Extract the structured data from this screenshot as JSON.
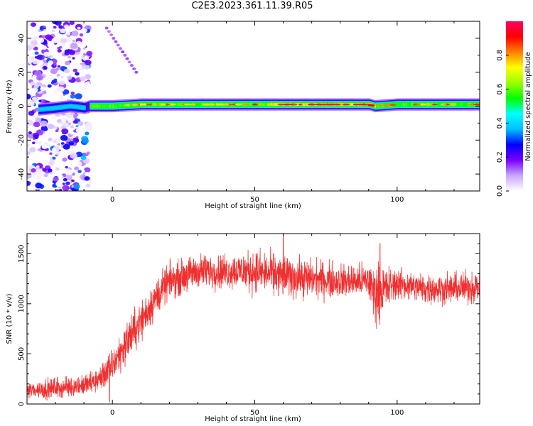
{
  "page": {
    "title": "C2E3.2023.361.11.39.R05"
  },
  "chart_data": [
    {
      "type": "heatmap",
      "title": "",
      "xlabel": "Height of straight line (km)",
      "ylabel": "Frequency (Hz)",
      "xlim": [
        -30,
        129
      ],
      "ylim": [
        -50,
        50
      ],
      "xticks": [
        0,
        50,
        100
      ],
      "yticks": [
        -40,
        -20,
        0,
        20,
        40
      ],
      "colorbar": {
        "label": "Normalized spectral amplitude",
        "range": [
          0.0,
          1.0
        ],
        "ticks": [
          0.0,
          0.2,
          0.4,
          0.6,
          0.8
        ],
        "tick_labels": [
          "0.0",
          "0.2",
          "0.4",
          "0.6",
          "0.8"
        ],
        "colormap": [
          "#ffffff",
          "#c9a7ff",
          "#7a00ff",
          "#0000ff",
          "#00bfff",
          "#00ffff",
          "#00ff00",
          "#9aff00",
          "#ffff00",
          "#ff8000",
          "#ff0000",
          "#ff0060"
        ]
      },
      "ridge": {
        "description_points": [
          {
            "x": -26,
            "y": -2
          },
          {
            "x": -20,
            "y": -1
          },
          {
            "x": -15,
            "y": 0
          },
          {
            "x": -10,
            "y": -1
          },
          {
            "x": -8,
            "y": 0
          },
          {
            "x": 0,
            "y": 0
          },
          {
            "x": 10,
            "y": 1
          },
          {
            "x": 20,
            "y": 1
          },
          {
            "x": 50,
            "y": 1
          },
          {
            "x": 90,
            "y": 1
          },
          {
            "x": 92,
            "y": 0
          },
          {
            "x": 100,
            "y": 1
          },
          {
            "x": 129,
            "y": 1
          }
        ],
        "peak_amplitude_range_km": [
          55,
          92
        ],
        "noise_region_km": [
          -30,
          -8
        ]
      },
      "grid": false
    },
    {
      "type": "line",
      "title": "",
      "xlabel": "Height of straight line (km)",
      "ylabel": "SNR (10 * v/v)",
      "xlim": [
        -30,
        129
      ],
      "ylim": [
        0,
        1700
      ],
      "xticks": [
        0,
        50,
        100
      ],
      "yticks": [
        0,
        500,
        1000,
        1500
      ],
      "color": "#f03030",
      "series": [
        {
          "envelope_points": [
            {
              "x": -30,
              "lo": 20,
              "hi": 250
            },
            {
              "x": -20,
              "lo": 20,
              "hi": 300
            },
            {
              "x": -10,
              "lo": 50,
              "hi": 320
            },
            {
              "x": -5,
              "lo": 80,
              "hi": 400
            },
            {
              "x": 0,
              "lo": 150,
              "hi": 600
            },
            {
              "x": 5,
              "lo": 350,
              "hi": 900
            },
            {
              "x": 10,
              "lo": 550,
              "hi": 1100
            },
            {
              "x": 15,
              "lo": 800,
              "hi": 1300
            },
            {
              "x": 20,
              "lo": 1000,
              "hi": 1450
            },
            {
              "x": 30,
              "lo": 1100,
              "hi": 1550
            },
            {
              "x": 40,
              "lo": 1100,
              "hi": 1550
            },
            {
              "x": 50,
              "lo": 1050,
              "hi": 1600
            },
            {
              "x": 60,
              "lo": 1000,
              "hi": 1550
            },
            {
              "x": 70,
              "lo": 1000,
              "hi": 1500
            },
            {
              "x": 80,
              "lo": 1000,
              "hi": 1450
            },
            {
              "x": 90,
              "lo": 1000,
              "hi": 1450
            },
            {
              "x": 92,
              "lo": 700,
              "hi": 1500
            },
            {
              "x": 100,
              "lo": 1000,
              "hi": 1400
            },
            {
              "x": 110,
              "lo": 950,
              "hi": 1350
            },
            {
              "x": 120,
              "lo": 950,
              "hi": 1350
            },
            {
              "x": 129,
              "lo": 950,
              "hi": 1400
            }
          ],
          "spikes": [
            {
              "x": 60,
              "y": 1700
            },
            {
              "x": 94,
              "y": 1600
            },
            {
              "x": -1,
              "y": 20
            }
          ]
        }
      ],
      "grid": false
    }
  ]
}
